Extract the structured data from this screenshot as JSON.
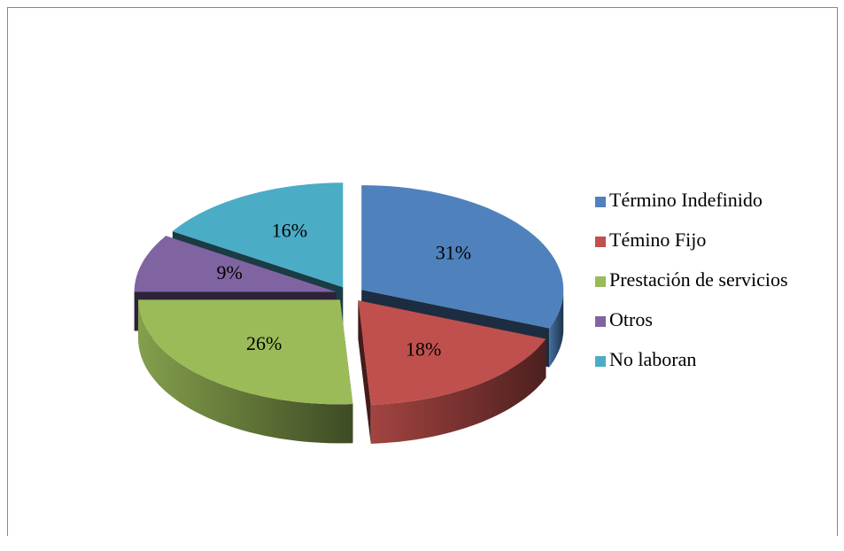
{
  "chart_data": {
    "type": "pie",
    "categories": [
      "Término Indefinido",
      "Témino Fijo",
      "Prestación de servicios",
      "Otros",
      "No laboran"
    ],
    "values": [
      31,
      18,
      26,
      9,
      16
    ],
    "value_labels": [
      "31%",
      "18%",
      "26%",
      "9%",
      "16%"
    ],
    "colors": [
      "#4f81bd",
      "#c0504d",
      "#9bbb59",
      "#8064a2",
      "#4bacc6"
    ],
    "legend": "right"
  }
}
